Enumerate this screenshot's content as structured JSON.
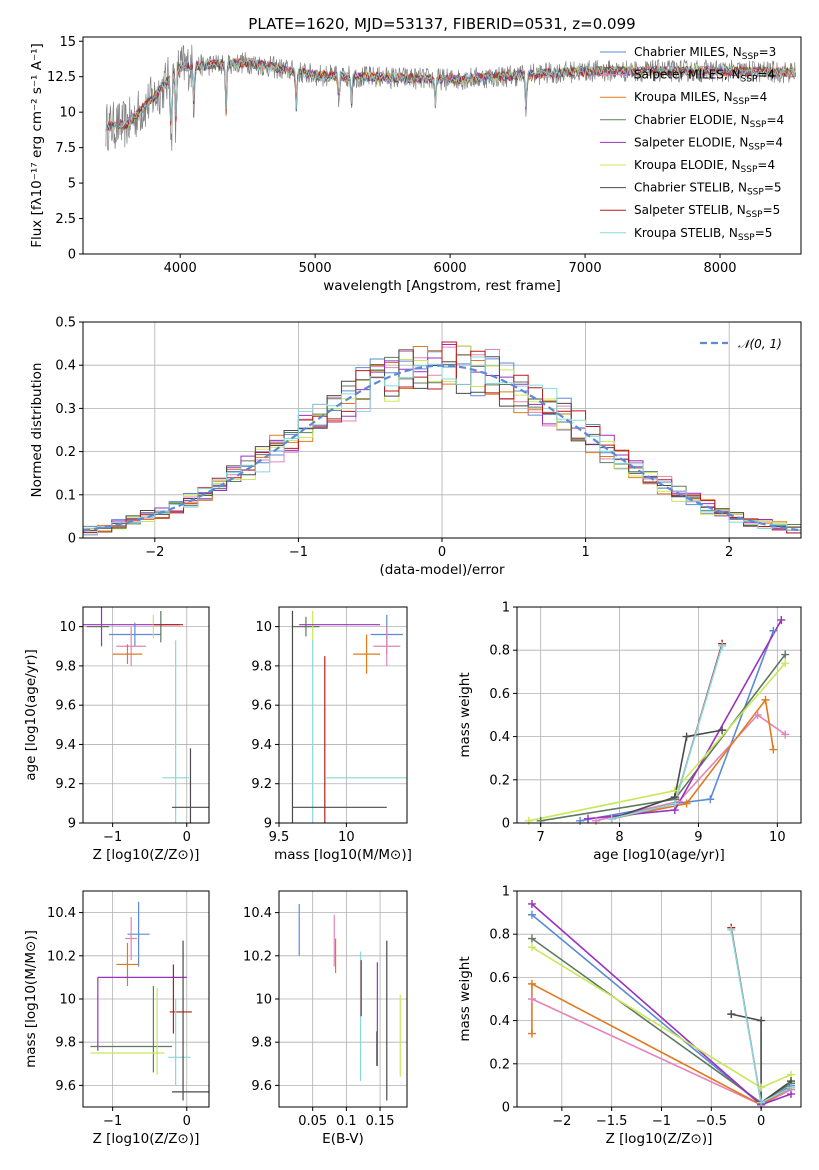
{
  "colors": {
    "chabrier_miles": "#5b8bd6",
    "salpeter_miles": "#e483b8",
    "kroupa_miles": "#e07a1f",
    "chabrier_elodie": "#5f7a5f",
    "salpeter_elodie": "#9b30c2",
    "kroupa_elodie": "#c8e85a",
    "chabrier_stelib": "#4a4a4a",
    "salpeter_stelib": "#b81c1c",
    "kroupa_stelib": "#86d8dc",
    "gaussian": "#5b8bd6"
  },
  "chart_data": [
    {
      "id": "spectrum",
      "type": "line",
      "title": "PLATE=1620, MJD=53137, FIBERID=0531, z=0.099",
      "xlabel": "wavelength [Angstrom, rest frame]",
      "ylabel": "Flux [fλ10⁻¹⁷ erg cm⁻² s⁻¹ A⁻¹]",
      "xlim": [
        3280,
        8600
      ],
      "ylim": [
        0,
        15.3
      ],
      "xticks": [
        4000,
        5000,
        6000,
        7000,
        8000
      ],
      "yticks": [
        0.0,
        2.5,
        5.0,
        7.5,
        10.0,
        12.5,
        15.0
      ],
      "grid": false,
      "legend_position": "top-right",
      "legend": [
        "Chabrier MILES, N_SSP=3",
        "Salpeter MILES, N_SSP=4",
        "Kroupa MILES, N_SSP=4",
        "Chabrier ELODIE, N_SSP=4",
        "Salpeter ELODIE, N_SSP=4",
        "Kroupa ELODIE, N_SSP=4",
        "Chabrier STELIB, N_SSP=5",
        "Salpeter STELIB, N_SSP=5",
        "Kroupa STELIB, N_SSP=5"
      ],
      "continuum": {
        "x": [
          3450,
          3600,
          3800,
          4000,
          4500,
          5000,
          6000,
          7000,
          8000,
          8600
        ],
        "y": [
          9.0,
          9.1,
          11.0,
          13.2,
          13.5,
          12.6,
          12.3,
          12.9,
          12.9,
          12.8
        ]
      },
      "absorption_lines": [
        {
          "x": 3934,
          "depth": 5.0
        },
        {
          "x": 3969,
          "depth": 4.0
        },
        {
          "x": 4102,
          "depth": 3.0
        },
        {
          "x": 4340,
          "depth": 4.0
        },
        {
          "x": 4861,
          "depth": 3.0
        },
        {
          "x": 5175,
          "depth": 2.0
        },
        {
          "x": 5270,
          "depth": 2.0
        },
        {
          "x": 5890,
          "depth": 2.0
        },
        {
          "x": 6563,
          "depth": 3.0
        }
      ]
    },
    {
      "id": "residuals",
      "type": "line",
      "xlabel": "(data-model)/error",
      "ylabel": "Normed distribution",
      "xlim": [
        -2.5,
        2.5
      ],
      "ylim": [
        0,
        0.5
      ],
      "xticks": [
        -2,
        -1,
        0,
        1,
        2
      ],
      "yticks": [
        0.0,
        0.1,
        0.2,
        0.3,
        0.4,
        0.5
      ],
      "grid": true,
      "legend": [
        "𝒩(0, 1)"
      ],
      "legend_position": "top-right",
      "gaussian": {
        "mean": 0,
        "sigma": 1
      },
      "bins": [
        -2.5,
        2.5,
        50
      ]
    },
    {
      "id": "z_age",
      "type": "scatter",
      "xlabel": "Z [log10(Z/Z⊙)]",
      "ylabel": "age  [log10(age/yr)]",
      "xlim": [
        -1.4,
        0.3
      ],
      "ylim": [
        9.0,
        10.1
      ],
      "xticks": [
        -1,
        0
      ],
      "yticks": [
        9.0,
        9.2,
        9.4,
        9.6,
        9.8,
        10.0
      ],
      "grid": true,
      "errorbars": [
        {
          "x": -1.2,
          "y": 10.0,
          "xerr": 0.15,
          "yerr": 0.0,
          "s": "chabrier_elodie"
        },
        {
          "x": -1.15,
          "y": 10.0,
          "xerr": 0.0,
          "yerr": 0.1,
          "s": "salpeter_elodie"
        },
        {
          "x": -0.8,
          "y": 10.01,
          "xerr": 0.7,
          "yerr": 0.0,
          "s": "salpeter_elodie"
        },
        {
          "x": -0.7,
          "y": 9.96,
          "xerr": 0.35,
          "yerr": 0.06,
          "s": "chabrier_miles"
        },
        {
          "x": -0.75,
          "y": 9.9,
          "xerr": 0.2,
          "yerr": 0.1,
          "s": "salpeter_miles"
        },
        {
          "x": -0.8,
          "y": 9.86,
          "xerr": 0.2,
          "yerr": 0.05,
          "s": "kroupa_miles"
        },
        {
          "x": -0.35,
          "y": 10.0,
          "xerr": 0.0,
          "yerr": 0.08,
          "s": "chabrier_elodie"
        },
        {
          "x": -0.45,
          "y": 10.0,
          "xerr": 0.0,
          "yerr": 0.06,
          "s": "kroupa_elodie"
        },
        {
          "x": -0.25,
          "y": 10.01,
          "xerr": 0.2,
          "yerr": 0.0,
          "s": "salpeter_stelib"
        },
        {
          "x": -0.15,
          "y": 9.23,
          "xerr": 0.18,
          "yerr": 0.7,
          "s": "kroupa_stelib"
        },
        {
          "x": 0.05,
          "y": 9.08,
          "xerr": 0.25,
          "yerr": 0.3,
          "s": "chabrier_stelib"
        }
      ]
    },
    {
      "id": "mass_age",
      "type": "scatter",
      "xlabel": "mass [log10(M/M⊙)]",
      "ylabel": "",
      "xlim": [
        9.5,
        10.45
      ],
      "ylim": [
        9.0,
        10.1
      ],
      "xticks": [
        9.5,
        10.0
      ],
      "yticks": [
        9.0,
        9.2,
        9.4,
        9.6,
        9.8,
        10.0
      ],
      "grid": true,
      "errorbars": [
        {
          "x": 9.7,
          "y": 10.0,
          "xerr": 0.1,
          "yerr": 0.05,
          "s": "chabrier_elodie"
        },
        {
          "x": 9.75,
          "y": 10.0,
          "xerr": 0.0,
          "yerr": 0.08,
          "s": "kroupa_elodie"
        },
        {
          "x": 9.95,
          "y": 10.01,
          "xerr": 0.3,
          "yerr": 0.0,
          "s": "salpeter_elodie"
        },
        {
          "x": 10.3,
          "y": 9.96,
          "xerr": 0.12,
          "yerr": 0.1,
          "s": "chabrier_miles"
        },
        {
          "x": 10.3,
          "y": 9.9,
          "xerr": 0.1,
          "yerr": 0.1,
          "s": "salpeter_miles"
        },
        {
          "x": 10.15,
          "y": 9.86,
          "xerr": 0.1,
          "yerr": 0.1,
          "s": "kroupa_miles"
        },
        {
          "x": 9.75,
          "y": 9.23,
          "xerr": 0.0,
          "yerr": 0.7,
          "s": "kroupa_stelib"
        },
        {
          "x": 10.15,
          "y": 9.23,
          "xerr": 0.3,
          "yerr": 0.0,
          "s": "kroupa_stelib"
        },
        {
          "x": 9.84,
          "y": 9.3,
          "xerr": 0.0,
          "yerr": 0.55,
          "s": "salpeter_stelib"
        },
        {
          "x": 9.6,
          "y": 9.08,
          "xerr": 0.0,
          "yerr": 1.0,
          "s": "chabrier_stelib"
        },
        {
          "x": 9.95,
          "y": 9.08,
          "xerr": 0.35,
          "yerr": 0.0,
          "s": "chabrier_stelib"
        }
      ]
    },
    {
      "id": "age_weight",
      "type": "line",
      "xlabel": "age  [log10(age/yr)]",
      "ylabel": "mass weight",
      "xlim": [
        6.7,
        10.3
      ],
      "ylim": [
        0,
        1
      ],
      "xticks": [
        7,
        8,
        9,
        10
      ],
      "yticks": [
        0.0,
        0.2,
        0.4,
        0.6,
        0.8,
        1.0
      ],
      "grid": true,
      "series": [
        {
          "s": "chabrier_miles",
          "x": [
            7.5,
            8.7,
            9.15,
            9.95
          ],
          "y": [
            0.01,
            0.09,
            0.11,
            0.89
          ]
        },
        {
          "s": "salpeter_miles",
          "x": [
            7.7,
            8.75,
            9.75,
            10.1
          ],
          "y": [
            0.01,
            0.1,
            0.5,
            0.41
          ]
        },
        {
          "s": "kroupa_miles",
          "x": [
            7.9,
            8.85,
            9.85,
            9.95
          ],
          "y": [
            0.02,
            0.09,
            0.57,
            0.34
          ]
        },
        {
          "s": "chabrier_elodie",
          "x": [
            7.0,
            8.7,
            10.1
          ],
          "y": [
            0.01,
            0.11,
            0.78
          ]
        },
        {
          "s": "salpeter_elodie",
          "x": [
            7.6,
            8.7,
            10.05
          ],
          "y": [
            0.02,
            0.06,
            0.94
          ]
        },
        {
          "s": "kroupa_elodie",
          "x": [
            6.85,
            8.7,
            10.1
          ],
          "y": [
            0.01,
            0.15,
            0.74
          ]
        },
        {
          "s": "chabrier_stelib",
          "x": [
            7.9,
            8.7,
            8.85,
            9.3
          ],
          "y": [
            0.02,
            0.12,
            0.4,
            0.43
          ]
        },
        {
          "s": "salpeter_stelib",
          "x": [
            7.9,
            8.7,
            9.3
          ],
          "y": [
            0.02,
            0.09,
            0.83
          ]
        },
        {
          "s": "kroupa_stelib",
          "x": [
            7.9,
            8.7,
            9.3
          ],
          "y": [
            0.02,
            0.09,
            0.82
          ]
        }
      ]
    },
    {
      "id": "z_mass",
      "type": "scatter",
      "xlabel": "Z [log10(Z/Z⊙)]",
      "ylabel": "mass [log10(M/M⊙)]",
      "xlim": [
        -1.4,
        0.3
      ],
      "ylim": [
        9.5,
        10.5
      ],
      "xticks": [
        -1,
        0
      ],
      "yticks": [
        9.6,
        9.8,
        10.0,
        10.2,
        10.4
      ],
      "grid": true,
      "errorbars": [
        {
          "x": -0.65,
          "y": 10.3,
          "xerr": 0.15,
          "yerr": 0.15,
          "s": "chabrier_miles"
        },
        {
          "x": -0.75,
          "y": 10.28,
          "xerr": 0.08,
          "yerr": 0.1,
          "s": "salpeter_miles"
        },
        {
          "x": -0.8,
          "y": 10.16,
          "xerr": 0.15,
          "yerr": 0.1,
          "s": "kroupa_miles"
        },
        {
          "x": -0.6,
          "y": 10.1,
          "xerr": 0.6,
          "yerr": 0.0,
          "s": "salpeter_elodie"
        },
        {
          "x": -1.2,
          "y": 9.93,
          "xerr": 0.0,
          "yerr": 0.17,
          "s": "salpeter_elodie"
        },
        {
          "x": -0.75,
          "y": 9.78,
          "xerr": 0.55,
          "yerr": 0.0,
          "s": "chabrier_elodie"
        },
        {
          "x": -0.45,
          "y": 9.86,
          "xerr": 0.0,
          "yerr": 0.2,
          "s": "chabrier_elodie"
        },
        {
          "x": -0.4,
          "y": 9.85,
          "xerr": 0.0,
          "yerr": 0.2,
          "s": "kroupa_elodie"
        },
        {
          "x": -0.8,
          "y": 9.75,
          "xerr": 0.5,
          "yerr": 0.0,
          "s": "kroupa_elodie"
        },
        {
          "x": -0.18,
          "y": 10.0,
          "xerr": 0.0,
          "yerr": 0.16,
          "s": "salpeter_stelib"
        },
        {
          "x": -0.08,
          "y": 9.94,
          "xerr": 0.15,
          "yerr": 0.0,
          "s": "salpeter_stelib"
        },
        {
          "x": -0.1,
          "y": 9.73,
          "xerr": 0.15,
          "yerr": 0.0,
          "s": "kroupa_stelib"
        },
        {
          "x": -0.15,
          "y": 9.8,
          "xerr": 0.0,
          "yerr": 0.2,
          "s": "kroupa_stelib"
        },
        {
          "x": -0.05,
          "y": 9.9,
          "xerr": 0.0,
          "yerr": 0.37,
          "s": "chabrier_stelib"
        },
        {
          "x": 0.05,
          "y": 9.57,
          "xerr": 0.25,
          "yerr": 0.0,
          "s": "chabrier_stelib"
        }
      ]
    },
    {
      "id": "ebv_mass",
      "type": "scatter",
      "xlabel": "E(B-V)",
      "ylabel": "",
      "xlim": [
        0.0,
        0.19
      ],
      "ylim": [
        9.5,
        10.5
      ],
      "xticks": [
        0.05,
        0.1,
        0.15
      ],
      "yticks": [
        9.6,
        9.8,
        10.0,
        10.2,
        10.4
      ],
      "grid": true,
      "errorbars": [
        {
          "x": 0.03,
          "y": 10.32,
          "xerr": 0.0,
          "yerr": 0.12,
          "s": "chabrier_miles"
        },
        {
          "x": 0.082,
          "y": 10.27,
          "xerr": 0.0,
          "yerr": 0.12,
          "s": "salpeter_miles"
        },
        {
          "x": 0.084,
          "y": 10.2,
          "xerr": 0.0,
          "yerr": 0.08,
          "s": "kroupa_miles"
        },
        {
          "x": 0.121,
          "y": 9.92,
          "xerr": 0.0,
          "yerr": 0.3,
          "s": "kroupa_stelib"
        },
        {
          "x": 0.122,
          "y": 10.05,
          "xerr": 0.0,
          "yerr": 0.13,
          "s": "salpeter_stelib"
        },
        {
          "x": 0.145,
          "y": 9.77,
          "xerr": 0.0,
          "yerr": 0.08,
          "s": "chabrier_elodie"
        },
        {
          "x": 0.146,
          "y": 9.93,
          "xerr": 0.0,
          "yerr": 0.24,
          "s": "salpeter_elodie"
        },
        {
          "x": 0.16,
          "y": 9.9,
          "xerr": 0.0,
          "yerr": 0.37,
          "s": "chabrier_stelib"
        },
        {
          "x": 0.18,
          "y": 9.83,
          "xerr": 0.0,
          "yerr": 0.19,
          "s": "kroupa_elodie"
        }
      ]
    },
    {
      "id": "z_weight",
      "type": "line",
      "xlabel": "Z [log10(Z/Z⊙)]",
      "ylabel": "mass weight",
      "xlim": [
        -2.45,
        0.4
      ],
      "ylim": [
        0,
        1
      ],
      "xticks": [
        -2.0,
        -1.5,
        -1.0,
        -0.5,
        0.0
      ],
      "yticks": [
        0.0,
        0.2,
        0.4,
        0.6,
        0.8,
        1.0
      ],
      "grid": true,
      "series": [
        {
          "s": "chabrier_miles",
          "x": [
            -2.3,
            0.0,
            0.3
          ],
          "y": [
            0.89,
            0.01,
            0.1
          ]
        },
        {
          "s": "salpeter_miles",
          "x": [
            -2.3,
            0.0,
            0.3
          ],
          "y": [
            0.5,
            0.01,
            0.08
          ]
        },
        {
          "s": "kroupa_miles",
          "x": [
            -2.3,
            -2.3,
            0.0,
            0.3
          ],
          "y": [
            0.34,
            0.57,
            0.01,
            0.09
          ]
        },
        {
          "s": "chabrier_elodie",
          "x": [
            -2.3,
            0.0,
            0.3
          ],
          "y": [
            0.78,
            0.02,
            0.11
          ]
        },
        {
          "s": "salpeter_elodie",
          "x": [
            -2.3,
            0.0,
            0.3
          ],
          "y": [
            0.94,
            0.01,
            0.06
          ]
        },
        {
          "s": "kroupa_elodie",
          "x": [
            -2.3,
            0.0,
            0.3
          ],
          "y": [
            0.74,
            0.09,
            0.15
          ]
        },
        {
          "s": "chabrier_stelib",
          "x": [
            -0.3,
            0.0,
            0.0,
            0.3
          ],
          "y": [
            0.43,
            0.4,
            0.02,
            0.12
          ]
        },
        {
          "s": "salpeter_stelib",
          "x": [
            -0.3,
            0.0,
            0.3
          ],
          "y": [
            0.83,
            0.02,
            0.09
          ]
        },
        {
          "s": "kroupa_stelib",
          "x": [
            -0.3,
            0.0,
            0.3
          ],
          "y": [
            0.82,
            0.02,
            0.09
          ]
        }
      ]
    }
  ]
}
